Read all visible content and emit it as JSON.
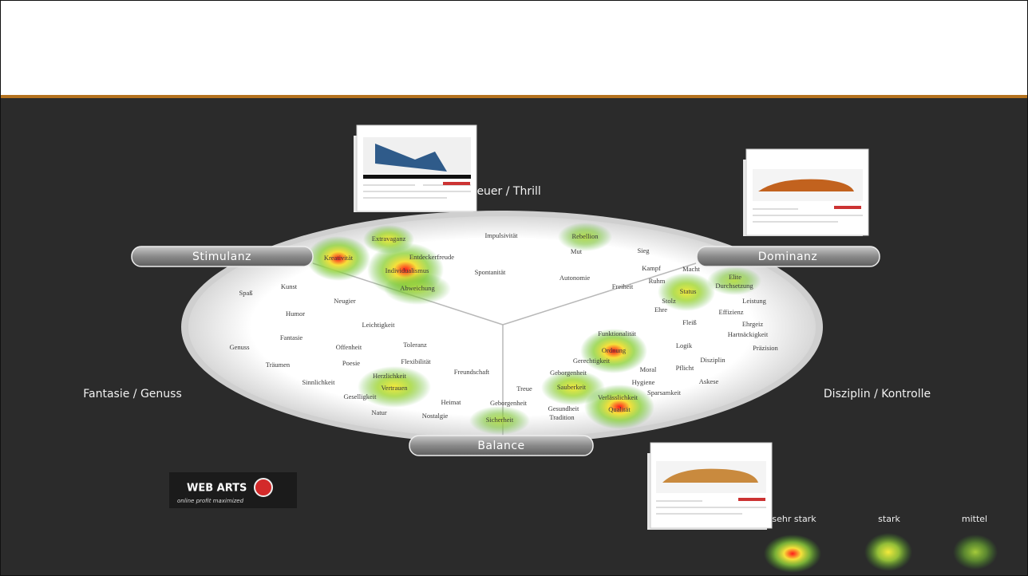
{
  "diagram": {
    "top_label": "Abenteuer / Thrill",
    "left_label": "Fantasie / Genuss",
    "right_label": "Disziplin / Kontrolle",
    "pills": [
      "Stimulanz",
      "Dominanz",
      "Balance"
    ],
    "words": [
      "Extravaganz",
      "Impulsivität",
      "Rebellion",
      "Kreativität",
      "Individualismus",
      "Entdeckerfreude",
      "Mut",
      "Sieg",
      "Spontanität",
      "Autonomie",
      "Kampf",
      "Macht",
      "Abweichung",
      "Ruhm",
      "Freiheit",
      "Elite",
      "Durchsetzung",
      "Status",
      "Spaß",
      "Kunst",
      "Neugier",
      "Stolz",
      "Leistung",
      "Ehre",
      "Effizienz",
      "Humor",
      "Leichtigkeit",
      "Fleiß",
      "Ehrgeiz",
      "Hartnäckigkeit",
      "Funktionalität",
      "Fantasie",
      "Offenheit",
      "Toleranz",
      "Logik",
      "Präzision",
      "Genuss",
      "Ordnung",
      "Gerechtigkeit",
      "Träumen",
      "Poesie",
      "Flexibilität",
      "Pflicht",
      "Disziplin",
      "Moral",
      "Herzlichkeit",
      "Freundschaft",
      "Geborgenheit",
      "Hygiene",
      "Askese",
      "Sinnlichkeit",
      "Vertrauen",
      "Treue",
      "Sauberkeit",
      "Sparsamkeit",
      "Geselligkeit",
      "Heimat",
      "Geborgenheit",
      "Verlässlichkeit",
      "Gesundheit",
      "Qualität",
      "Natur",
      "Nostalgie",
      "Sicherheit",
      "Tradition"
    ]
  },
  "legend": [
    "sehr stark",
    "stark",
    "mittel"
  ],
  "logo": {
    "name": "WEB ARTS",
    "tagline": "online profit maximized"
  }
}
